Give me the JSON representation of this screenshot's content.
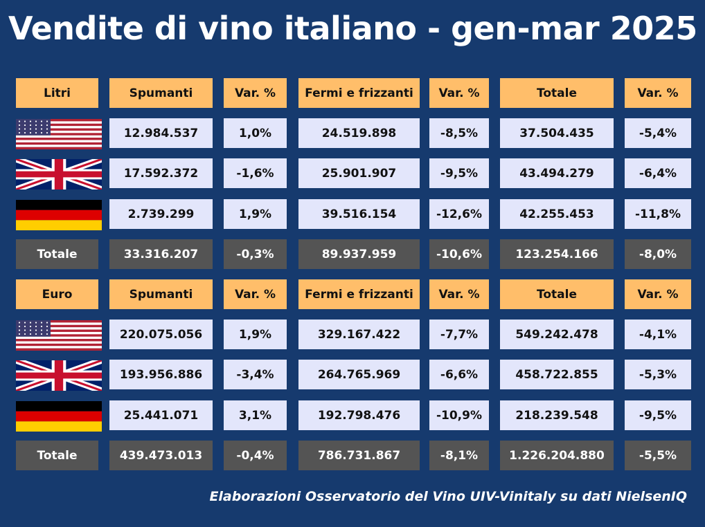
{
  "title": "Vendite di vino italiano - gen-mar 2025",
  "footer": "Elaborazioni Osservatorio del Vino UIV-Vinitaly su dati NielsenIQ",
  "colors": {
    "background": "#163A6E",
    "header": "#FFBE6A",
    "data_cell": "#E3E6FB",
    "total_row": "#545454"
  },
  "chart_data": {
    "type": "table",
    "columns": [
      "Spumanti",
      "Var. %",
      "Fermi e frizzanti",
      "Var. %",
      "Totale",
      "Var. %"
    ],
    "sections": [
      {
        "label": "Litri",
        "rows": [
          {
            "country_icon": "usa-flag-icon",
            "values": [
              "12.984.537",
              "1,0%",
              "24.519.898",
              "-8,5%",
              "37.504.435",
              "-5,4%"
            ]
          },
          {
            "country_icon": "uk-flag-icon",
            "values": [
              "17.592.372",
              "-1,6%",
              "25.901.907",
              "-9,5%",
              "43.494.279",
              "-6,4%"
            ]
          },
          {
            "country_icon": "germany-flag-icon",
            "values": [
              "2.739.299",
              "1,9%",
              "39.516.154",
              "-12,6%",
              "42.255.453",
              "-11,8%"
            ]
          }
        ],
        "total": {
          "label": "Totale",
          "values": [
            "33.316.207",
            "-0,3%",
            "89.937.959",
            "-10,6%",
            "123.254.166",
            "-8,0%"
          ]
        }
      },
      {
        "label": "Euro",
        "rows": [
          {
            "country_icon": "usa-flag-icon",
            "values": [
              "220.075.056",
              "1,9%",
              "329.167.422",
              "-7,7%",
              "549.242.478",
              "-4,1%"
            ]
          },
          {
            "country_icon": "uk-flag-icon",
            "values": [
              "193.956.886",
              "-3,4%",
              "264.765.969",
              "-6,6%",
              "458.722.855",
              "-5,3%"
            ]
          },
          {
            "country_icon": "germany-flag-icon",
            "values": [
              "25.441.071",
              "3,1%",
              "192.798.476",
              "-10,9%",
              "218.239.548",
              "-9,5%"
            ]
          }
        ],
        "total": {
          "label": "Totale",
          "values": [
            "439.473.013",
            "-0,4%",
            "786.731.867",
            "-8,1%",
            "1.226.204.880",
            "-5,5%"
          ]
        }
      }
    ]
  }
}
